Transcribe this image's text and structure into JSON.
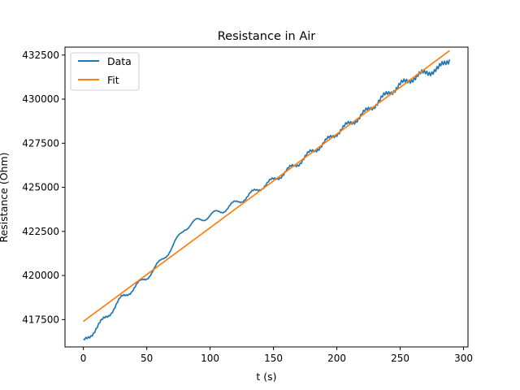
{
  "chart_data": {
    "type": "line",
    "title": "Resistance in Air",
    "xlabel": "t (s)",
    "ylabel": "Resistance (Ohm)",
    "xlim": [
      -14.5,
      303.5
    ],
    "ylim": [
      415950,
      432950
    ],
    "xticks": [
      0,
      50,
      100,
      150,
      200,
      250,
      300
    ],
    "xtick_labels": [
      "0",
      "50",
      "100",
      "150",
      "200",
      "250",
      "300"
    ],
    "yticks": [
      417500,
      420000,
      422500,
      425000,
      427500,
      430000,
      432500
    ],
    "ytick_labels": [
      "417500",
      "420000",
      "422500",
      "425000",
      "427500",
      "430000",
      "432500"
    ],
    "grid": false,
    "legend_position": "top-left",
    "series": [
      {
        "name": "Data",
        "color": "#1f77b4",
        "style": "noisy-line",
        "x": [
          0,
          10,
          20,
          30,
          40,
          50,
          60,
          70,
          80,
          90,
          100,
          110,
          120,
          130,
          140,
          150,
          160,
          170,
          180,
          190,
          200,
          210,
          220,
          230,
          240,
          250,
          260,
          270,
          280,
          289
        ],
        "y": [
          416200,
          417000,
          417800,
          418700,
          419300,
          419900,
          420700,
          421600,
          422700,
          423100,
          423400,
          423700,
          424100,
          424500,
          425000,
          425400,
          425900,
          426400,
          427000,
          427500,
          428100,
          428600,
          429100,
          429700,
          430300,
          430800,
          431200,
          431500,
          431700,
          432300
        ]
      },
      {
        "name": "Fit",
        "color": "#ff7f0e",
        "style": "line",
        "x": [
          0,
          289
        ],
        "y": [
          417400,
          432750
        ]
      }
    ]
  }
}
